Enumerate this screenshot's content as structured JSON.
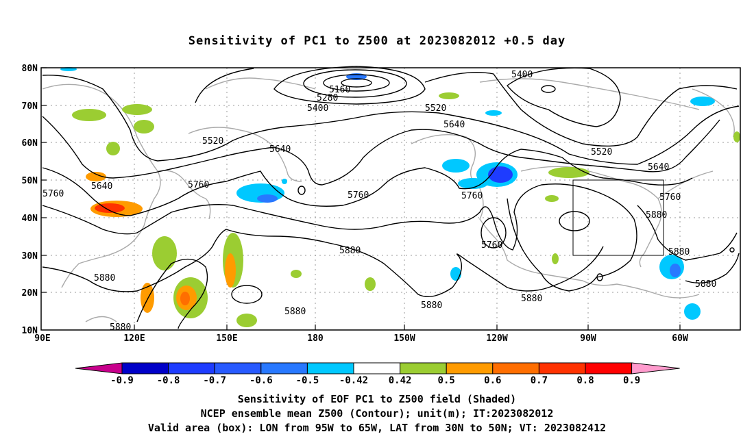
{
  "title": "Sensitivity of PC1 to Z500 at 2023082012 +0.5 day",
  "lat_labels": [
    "80N",
    "70N",
    "60N",
    "50N",
    "40N",
    "30N",
    "20N",
    "10N"
  ],
  "lon_labels": [
    "90E",
    "120E",
    "150E",
    "180",
    "150W",
    "120W",
    "90W",
    "60W"
  ],
  "contour_labels": [
    "5160",
    "5280",
    "5400",
    "5400",
    "5520",
    "5520",
    "5520",
    "5640",
    "5640",
    "5640",
    "5640",
    "5760",
    "5760",
    "5760",
    "5760",
    "5760",
    "5760",
    "5880",
    "5880",
    "5880",
    "5880",
    "5880",
    "5880",
    "5880",
    "5880",
    "5880"
  ],
  "colorbar": {
    "labels": [
      "-0.9",
      "-0.8",
      "-0.7",
      "-0.6",
      "-0.5",
      "-0.42",
      "0.42",
      "0.5",
      "0.6",
      "0.7",
      "0.8",
      "0.9"
    ],
    "colors": [
      "#0000c8",
      "#1e3cff",
      "#285aff",
      "#2878ff",
      "#00c8ff",
      "#ffffff",
      "#9bcd32",
      "#ff9b00",
      "#ff6e00",
      "#ff3200",
      "#ff0000"
    ],
    "under_color": "#c8008c",
    "over_color": "#ff9bcd"
  },
  "footer": {
    "line1": "Sensitivity of EOF PC1 to Z500 field (Shaded)",
    "line2": "NCEP ensemble mean Z500 (Contour); unit(m); IT:2023082012",
    "line3": "Valid area (box): LON from 95W to 65W, LAT from 30N to 50N; VT: 2023082412"
  }
}
